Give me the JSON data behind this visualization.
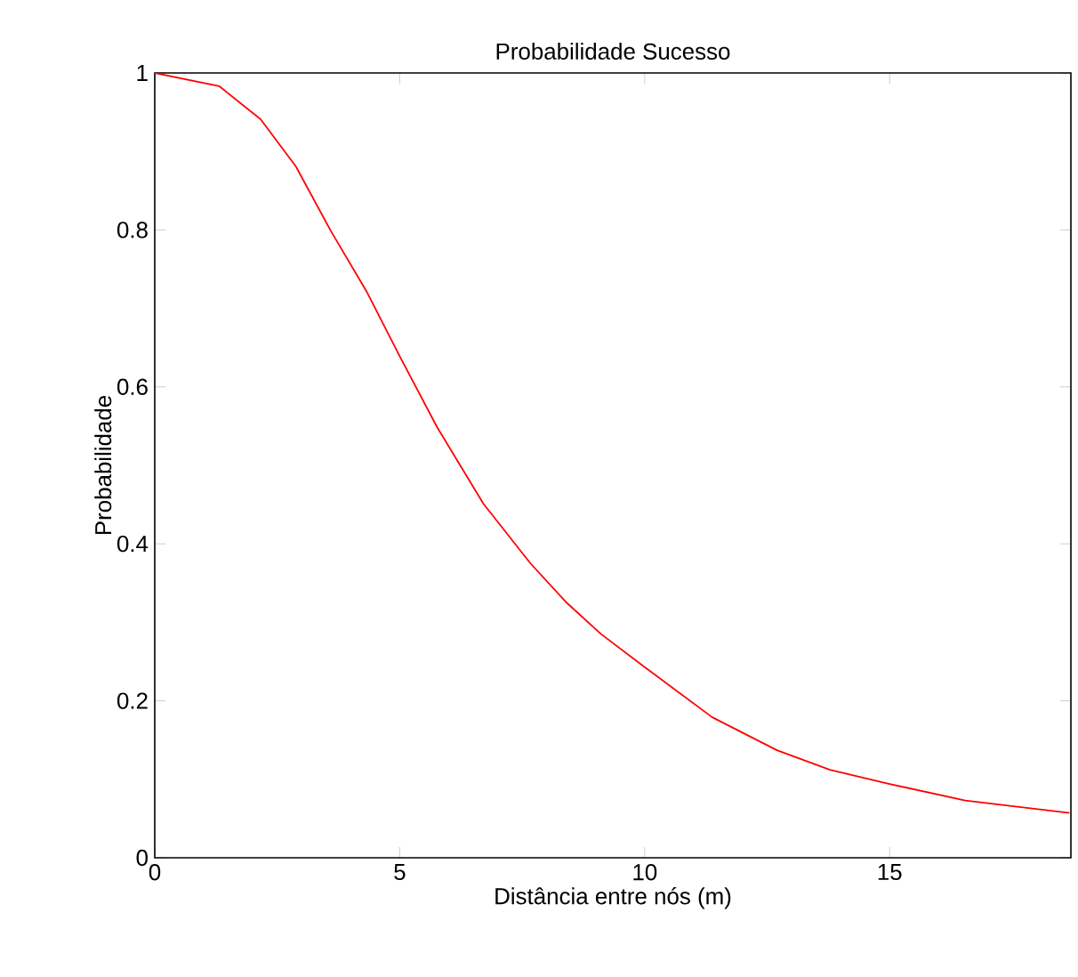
{
  "chart_data": {
    "type": "line",
    "title": "Probabilidade Sucesso",
    "xlabel": "Distância entre nós (m)",
    "ylabel": "Probabilidade",
    "xlim": [
      0,
      18.7
    ],
    "ylim": [
      0,
      1
    ],
    "xticks": [
      0,
      5,
      10,
      15
    ],
    "yticks": [
      0,
      0.2,
      0.4,
      0.6,
      0.8,
      1
    ],
    "series": [
      {
        "color": "#ff0000",
        "x": [
          0,
          1.32,
          2.16,
          2.88,
          3.6,
          4.32,
          5.0,
          5.76,
          6.71,
          7.67,
          8.39,
          9.11,
          10.0,
          11.38,
          12.7,
          13.78,
          15.0,
          16.54,
          18.67
        ],
        "values": [
          1,
          0.983,
          0.941,
          0.881,
          0.798,
          0.722,
          0.639,
          0.549,
          0.451,
          0.375,
          0.326,
          0.285,
          0.243,
          0.179,
          0.137,
          0.112,
          0.094,
          0.073,
          0.057
        ]
      }
    ]
  }
}
